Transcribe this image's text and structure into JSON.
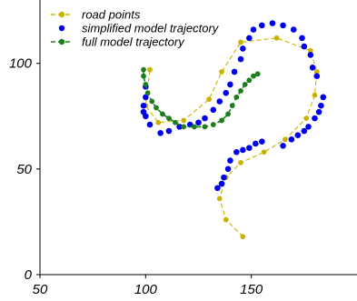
{
  "chart_data": {
    "type": "scatter",
    "title": "",
    "xlabel": "",
    "ylabel": "",
    "xlim": [
      50,
      200
    ],
    "ylim": [
      0,
      130
    ],
    "x_ticks": [
      50,
      100,
      150
    ],
    "y_ticks": [
      0,
      50,
      100
    ],
    "grid": false,
    "legend_position": "top-left",
    "series": [
      {
        "name": "road points",
        "style": "dashed line with markers",
        "color": "#c8b400",
        "points": [
          [
            146,
            18
          ],
          [
            138,
            26
          ],
          [
            135,
            36
          ],
          [
            138,
            46
          ],
          [
            145,
            53
          ],
          [
            156,
            58
          ],
          [
            166,
            64
          ],
          [
            176,
            74
          ],
          [
            180,
            85
          ],
          [
            181,
            96
          ],
          [
            178,
            106
          ],
          [
            162,
            112
          ],
          [
            145,
            110
          ],
          [
            136,
            96
          ],
          [
            130,
            83
          ],
          [
            118,
            73
          ],
          [
            106,
            72
          ],
          [
            100,
            80
          ],
          [
            102,
            97
          ]
        ]
      },
      {
        "name": "simplified model trajectory",
        "style": "markers",
        "color": "#0000ee",
        "points": [
          [
            134,
            41
          ],
          [
            136,
            43
          ],
          [
            137,
            46
          ],
          [
            139,
            50
          ],
          [
            140,
            54
          ],
          [
            143,
            58
          ],
          [
            146,
            59
          ],
          [
            149,
            60
          ],
          [
            152,
            62
          ],
          [
            155,
            63
          ],
          [
            165,
            61
          ],
          [
            169,
            64
          ],
          [
            172,
            66
          ],
          [
            175,
            68
          ],
          [
            177,
            70
          ],
          [
            180,
            74
          ],
          [
            182,
            77
          ],
          [
            183,
            80
          ],
          [
            184,
            84
          ],
          [
            181,
            94
          ],
          [
            179,
            98
          ],
          [
            178,
            104
          ],
          [
            175,
            108
          ],
          [
            174,
            112
          ],
          [
            170,
            116
          ],
          [
            165,
            118
          ],
          [
            160,
            119
          ],
          [
            155,
            118
          ],
          [
            151,
            116
          ],
          [
            149,
            112
          ],
          [
            146,
            107
          ],
          [
            145,
            102
          ],
          [
            142,
            96
          ],
          [
            140,
            90
          ],
          [
            138,
            86
          ],
          [
            135,
            82
          ],
          [
            132,
            78
          ],
          [
            128,
            74
          ],
          [
            125,
            72
          ],
          [
            121,
            71
          ],
          [
            116,
            70
          ],
          [
            111,
            68
          ],
          [
            107,
            67
          ],
          [
            102,
            71
          ],
          [
            100,
            75
          ],
          [
            99,
            77
          ],
          [
            99,
            80
          ],
          [
            100,
            84
          ],
          [
            100,
            89
          ]
        ]
      },
      {
        "name": "full model trajectory",
        "style": "dashed line with markers",
        "color": "#1e7e1e",
        "points": [
          [
            99,
            97
          ],
          [
            99,
            94
          ],
          [
            100,
            90
          ],
          [
            101,
            86
          ],
          [
            103,
            82
          ],
          [
            105,
            79
          ],
          [
            108,
            76
          ],
          [
            111,
            74
          ],
          [
            114,
            72
          ],
          [
            118,
            70
          ],
          [
            123,
            70
          ],
          [
            128,
            70
          ],
          [
            132,
            71
          ],
          [
            136,
            73
          ],
          [
            139,
            76
          ],
          [
            141,
            80
          ],
          [
            143,
            84
          ],
          [
            145,
            87
          ],
          [
            147,
            90
          ],
          [
            149,
            92
          ],
          [
            151,
            94
          ],
          [
            153,
            95
          ]
        ]
      }
    ]
  }
}
